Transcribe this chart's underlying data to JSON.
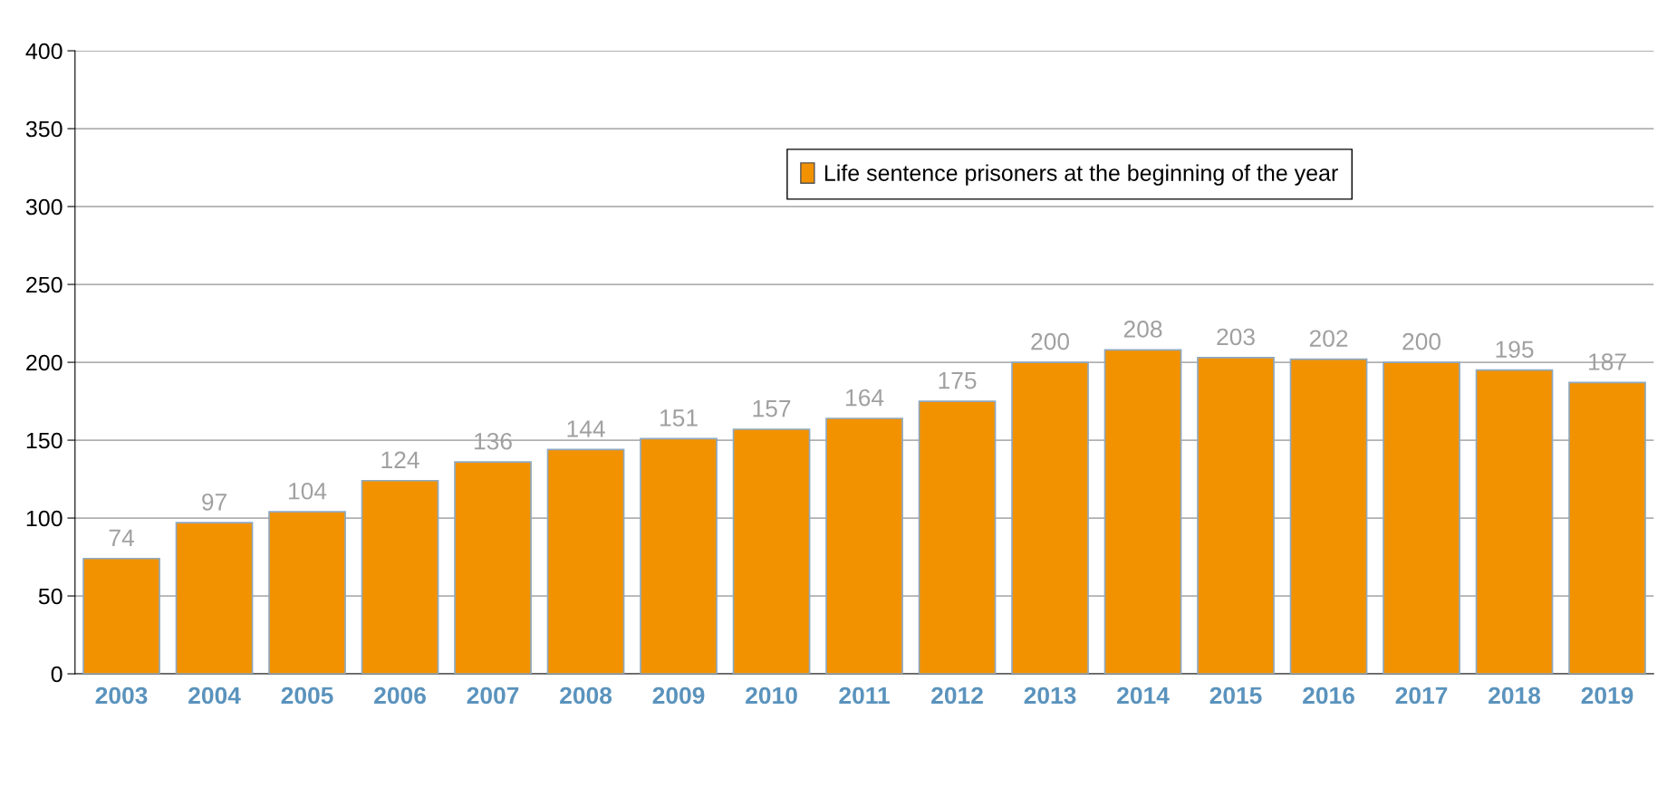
{
  "chart_data": {
    "type": "bar",
    "categories": [
      "2003",
      "2004",
      "2005",
      "2006",
      "2007",
      "2008",
      "2009",
      "2010",
      "2011",
      "2012",
      "2013",
      "2014",
      "2015",
      "2016",
      "2017",
      "2018",
      "2019"
    ],
    "series": [
      {
        "name": "Life sentence prisoners at the beginning of the year",
        "color": "#f39200",
        "values": [
          74,
          97,
          104,
          124,
          136,
          144,
          151,
          157,
          164,
          175,
          200,
          208,
          203,
          202,
          200,
          195,
          187
        ]
      }
    ],
    "ylim": [
      0,
      400
    ],
    "yticks": [
      0,
      50,
      100,
      150,
      200,
      250,
      300,
      350,
      400
    ],
    "grid": "y",
    "legend": "top",
    "data_labels": true
  }
}
